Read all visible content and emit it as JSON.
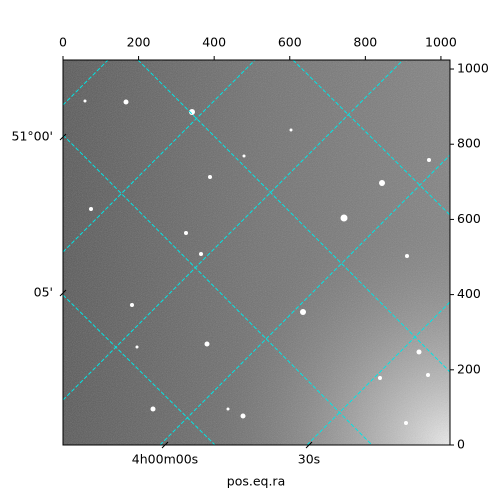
{
  "chart_data": {
    "type": "image",
    "xlabel": "pos.eq.ra",
    "xlim": [
      0,
      1024
    ],
    "ylim": [
      0,
      1024
    ],
    "xticks": [
      0,
      200,
      400,
      600,
      800,
      1000
    ],
    "yticks": [
      0,
      200,
      400,
      600,
      800,
      1000
    ],
    "ra_labels": [
      "4h00m00s",
      "30s"
    ],
    "dec_labels": [
      "51°00'",
      "05'"
    ],
    "grid": true,
    "grid_color": "#00e5e5"
  }
}
